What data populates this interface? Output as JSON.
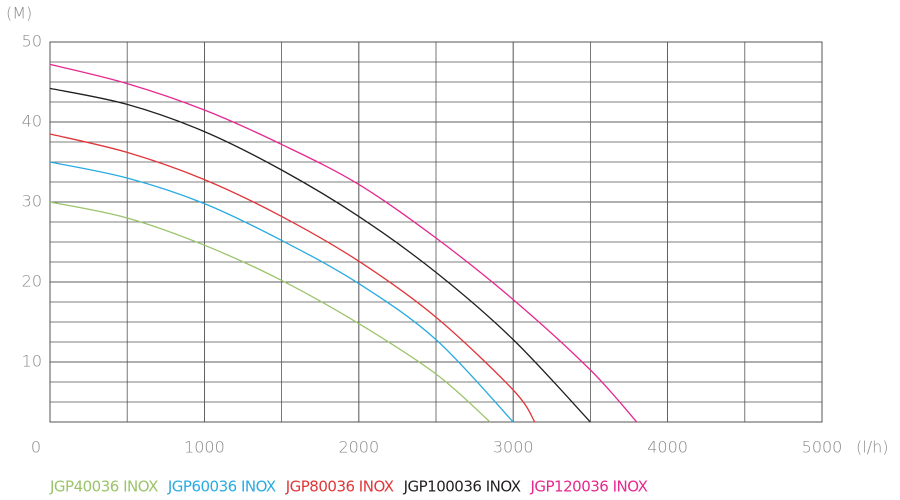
{
  "chart_data": {
    "type": "line",
    "y_label": "(M)",
    "x_label": "(l/h)",
    "xlim": [
      0,
      5000
    ],
    "xticks": [
      0,
      1000,
      2000,
      3000,
      4000,
      5000
    ],
    "ylim": [
      2.5,
      50
    ],
    "yticks": [
      10,
      20,
      30,
      40,
      50
    ],
    "grid": true,
    "series": [
      {
        "name": "JGP40036 INOX",
        "color": "#9bc46a",
        "x": [
          0,
          500,
          1000,
          1500,
          2000,
          2500,
          2850
        ],
        "values": [
          30,
          28,
          24.6,
          20.2,
          14.8,
          8.5,
          2.5
        ]
      },
      {
        "name": "JGP60036 INOX",
        "color": "#29abe2",
        "x": [
          0,
          500,
          1000,
          1500,
          2000,
          2500,
          3000
        ],
        "values": [
          35,
          33,
          29.8,
          25.2,
          19.8,
          12.8,
          2.5
        ]
      },
      {
        "name": "JGP80036 INOX",
        "color": "#e0363a",
        "x": [
          0,
          500,
          1000,
          1500,
          2000,
          2500,
          3000,
          3140
        ],
        "values": [
          38.5,
          36.2,
          32.8,
          28.2,
          22.6,
          15.6,
          6.5,
          2.5
        ]
      },
      {
        "name": "JGP100036 INOX",
        "color": "#231f20",
        "x": [
          0,
          500,
          1000,
          1500,
          2000,
          2500,
          3000,
          3500
        ],
        "values": [
          44.2,
          42.2,
          38.8,
          34,
          28.2,
          21.2,
          12.8,
          2.5
        ]
      },
      {
        "name": "JGP120036 INOX",
        "color": "#e6288f",
        "x": [
          0,
          500,
          1000,
          1500,
          2000,
          2500,
          3000,
          3500,
          3800
        ],
        "values": [
          47.2,
          44.8,
          41.5,
          37.2,
          32.2,
          25.5,
          17.8,
          9,
          2.5
        ]
      }
    ]
  }
}
